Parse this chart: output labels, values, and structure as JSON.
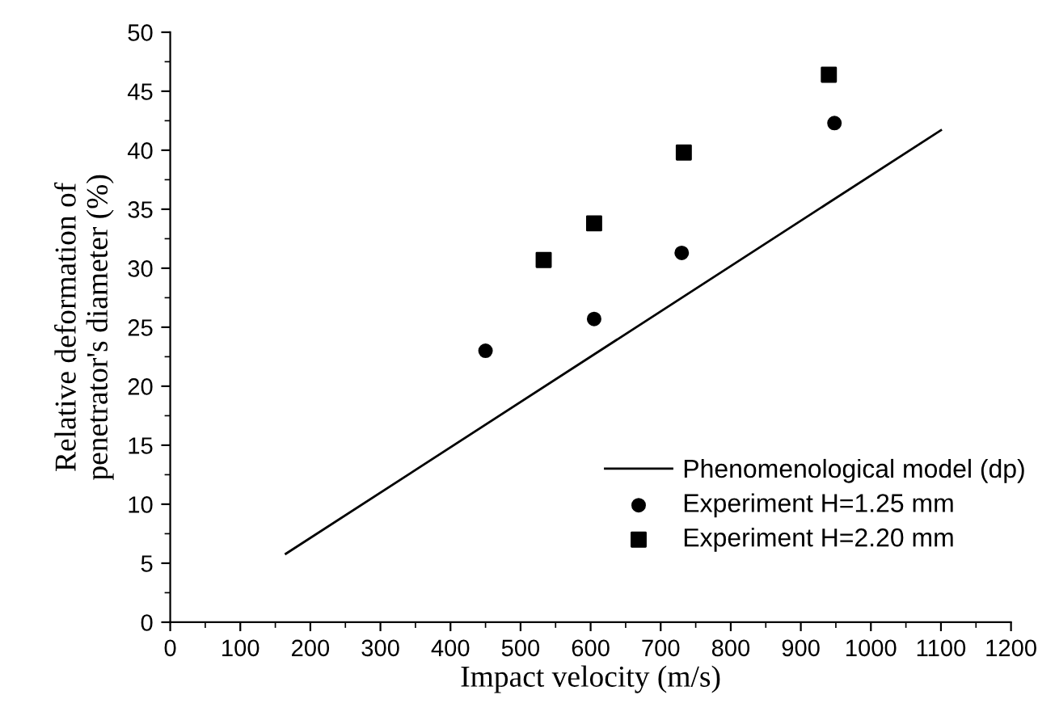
{
  "chart_data": {
    "type": "scatter",
    "xlabel": "Impact velocity (m/s)",
    "ylabel": "Relative deformation of\npenetrator's diameter (%)",
    "xlim": [
      0,
      1200
    ],
    "xticks": [
      0,
      100,
      200,
      300,
      400,
      500,
      600,
      700,
      800,
      900,
      1000,
      1100,
      1200
    ],
    "ylim": [
      0,
      50
    ],
    "yticks": [
      0,
      5,
      10,
      15,
      20,
      25,
      30,
      35,
      40,
      45,
      50
    ],
    "grid": false,
    "legend": "bottom right",
    "series": [
      {
        "name": "Phenomenological model (dp)",
        "type": "line",
        "color": "#000000",
        "marker": "none",
        "line_style": "solid",
        "x": [
          165,
          1100
        ],
        "values": [
          5.8,
          41.7
        ]
      },
      {
        "name": "Experiment H=1.25 mm",
        "color": "#000000",
        "marker": "circle",
        "x": [
          450,
          605,
          730,
          948
        ],
        "values": [
          23.0,
          25.7,
          31.3,
          42.3
        ]
      },
      {
        "name": "Experiment H=2.20 mm",
        "color": "#000000",
        "marker": "square",
        "x": [
          533,
          605,
          733,
          940
        ],
        "values": [
          30.7,
          33.8,
          39.8,
          46.4
        ]
      }
    ]
  }
}
